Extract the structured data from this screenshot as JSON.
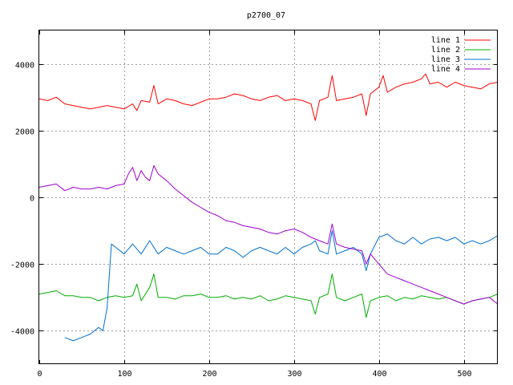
{
  "chart_data": {
    "type": "line",
    "title": "p2700_07",
    "xlabel": "",
    "ylabel": "",
    "xlim": [
      0,
      540
    ],
    "ylim": [
      -5000,
      5000
    ],
    "xticks": [
      0,
      100,
      200,
      300,
      400,
      500
    ],
    "yticks": [
      -4000,
      -2000,
      0,
      2000,
      4000
    ],
    "grid": true,
    "legend_position": "top-right",
    "series": [
      {
        "name": "line 1",
        "color": "#ff0000",
        "x": [
          0,
          10,
          20,
          30,
          40,
          50,
          60,
          70,
          80,
          90,
          100,
          110,
          115,
          120,
          130,
          135,
          140,
          150,
          160,
          170,
          180,
          190,
          200,
          210,
          220,
          230,
          240,
          250,
          260,
          270,
          280,
          290,
          300,
          310,
          320,
          325,
          330,
          340,
          345,
          350,
          360,
          370,
          380,
          385,
          390,
          400,
          405,
          410,
          420,
          430,
          440,
          450,
          455,
          460,
          470,
          480,
          490,
          500,
          510,
          520,
          530,
          540
        ],
        "y": [
          2950,
          2900,
          3000,
          2800,
          2750,
          2700,
          2650,
          2700,
          2750,
          2700,
          2650,
          2800,
          2600,
          2900,
          2850,
          3350,
          2800,
          2950,
          2900,
          2800,
          2750,
          2850,
          2950,
          2950,
          3000,
          3100,
          3050,
          2950,
          2900,
          3000,
          3050,
          2900,
          2950,
          2900,
          2800,
          2300,
          2900,
          3000,
          3650,
          2900,
          2950,
          3000,
          3100,
          2450,
          3100,
          3300,
          3650,
          3150,
          3300,
          3400,
          3450,
          3550,
          3700,
          3400,
          3450,
          3300,
          3450,
          3350,
          3300,
          3250,
          3400,
          3450
        ]
      },
      {
        "name": "line 2",
        "color": "#00b000",
        "x": [
          0,
          10,
          20,
          30,
          40,
          50,
          60,
          70,
          80,
          90,
          100,
          110,
          115,
          120,
          130,
          135,
          140,
          150,
          160,
          170,
          180,
          190,
          200,
          210,
          220,
          230,
          240,
          250,
          260,
          270,
          280,
          290,
          300,
          310,
          320,
          325,
          330,
          340,
          345,
          350,
          360,
          370,
          380,
          385,
          390,
          400,
          410,
          420,
          430,
          440,
          450,
          460,
          470,
          480,
          490,
          500,
          510,
          520,
          530,
          540
        ],
        "y": [
          -2900,
          -2850,
          -2800,
          -2950,
          -2950,
          -3000,
          -3000,
          -3100,
          -3000,
          -2950,
          -3000,
          -2950,
          -2600,
          -3100,
          -2700,
          -2300,
          -3000,
          -3000,
          -3050,
          -2950,
          -2950,
          -2900,
          -3000,
          -3000,
          -2950,
          -3050,
          -3000,
          -3050,
          -2950,
          -3100,
          -3050,
          -2950,
          -3000,
          -3050,
          -3100,
          -3500,
          -3000,
          -2900,
          -2300,
          -3000,
          -3100,
          -3000,
          -2900,
          -3600,
          -3100,
          -3000,
          -2950,
          -3100,
          -3000,
          -3050,
          -2950,
          -3000,
          -3050,
          -3000,
          -3100,
          -3200,
          -3100,
          -3050,
          -3000,
          -2900
        ]
      },
      {
        "name": "line 3",
        "color": "#0070d0",
        "x": [
          30,
          40,
          50,
          60,
          70,
          75,
          80,
          85,
          90,
          100,
          110,
          120,
          130,
          140,
          150,
          160,
          170,
          180,
          190,
          200,
          210,
          220,
          230,
          240,
          250,
          260,
          270,
          280,
          290,
          300,
          310,
          320,
          325,
          330,
          340,
          345,
          350,
          360,
          370,
          380,
          385,
          390,
          400,
          410,
          420,
          430,
          440,
          450,
          460,
          470,
          480,
          490,
          500,
          510,
          520,
          530,
          540
        ],
        "y": [
          -4200,
          -4300,
          -4200,
          -4100,
          -3900,
          -4000,
          -3300,
          -1400,
          -1500,
          -1700,
          -1400,
          -1700,
          -1300,
          -1700,
          -1500,
          -1600,
          -1700,
          -1600,
          -1500,
          -1700,
          -1700,
          -1500,
          -1600,
          -1800,
          -1600,
          -1500,
          -1600,
          -1700,
          -1500,
          -1700,
          -1500,
          -1400,
          -1300,
          -1600,
          -1700,
          -1000,
          -1700,
          -1600,
          -1500,
          -1700,
          -2200,
          -1700,
          -1200,
          -1100,
          -1300,
          -1400,
          -1200,
          -1400,
          -1250,
          -1200,
          -1300,
          -1200,
          -1400,
          -1300,
          -1400,
          -1300,
          -1150
        ]
      },
      {
        "name": "line 4",
        "color": "#a000d0",
        "x": [
          0,
          10,
          20,
          30,
          40,
          50,
          60,
          70,
          80,
          90,
          100,
          105,
          110,
          115,
          120,
          125,
          130,
          135,
          140,
          150,
          160,
          170,
          180,
          190,
          200,
          210,
          220,
          230,
          240,
          250,
          260,
          270,
          280,
          290,
          300,
          310,
          320,
          330,
          340,
          345,
          350,
          360,
          370,
          380,
          385,
          390,
          400,
          410,
          420,
          430,
          440,
          450,
          460,
          470,
          480,
          490,
          500,
          510,
          520,
          530,
          540
        ],
        "y": [
          300,
          350,
          400,
          200,
          300,
          250,
          250,
          300,
          250,
          350,
          400,
          700,
          900,
          500,
          800,
          600,
          500,
          950,
          700,
          500,
          250,
          50,
          -150,
          -300,
          -450,
          -550,
          -700,
          -750,
          -850,
          -900,
          -950,
          -1050,
          -1100,
          -1000,
          -950,
          -1050,
          -1200,
          -1300,
          -1400,
          -800,
          -1400,
          -1500,
          -1550,
          -1600,
          -2000,
          -1700,
          -2000,
          -2300,
          -2400,
          -2500,
          -2600,
          -2700,
          -2800,
          -2900,
          -3000,
          -3100,
          -3200,
          -3100,
          -3050,
          -3000,
          -3200
        ]
      }
    ]
  }
}
